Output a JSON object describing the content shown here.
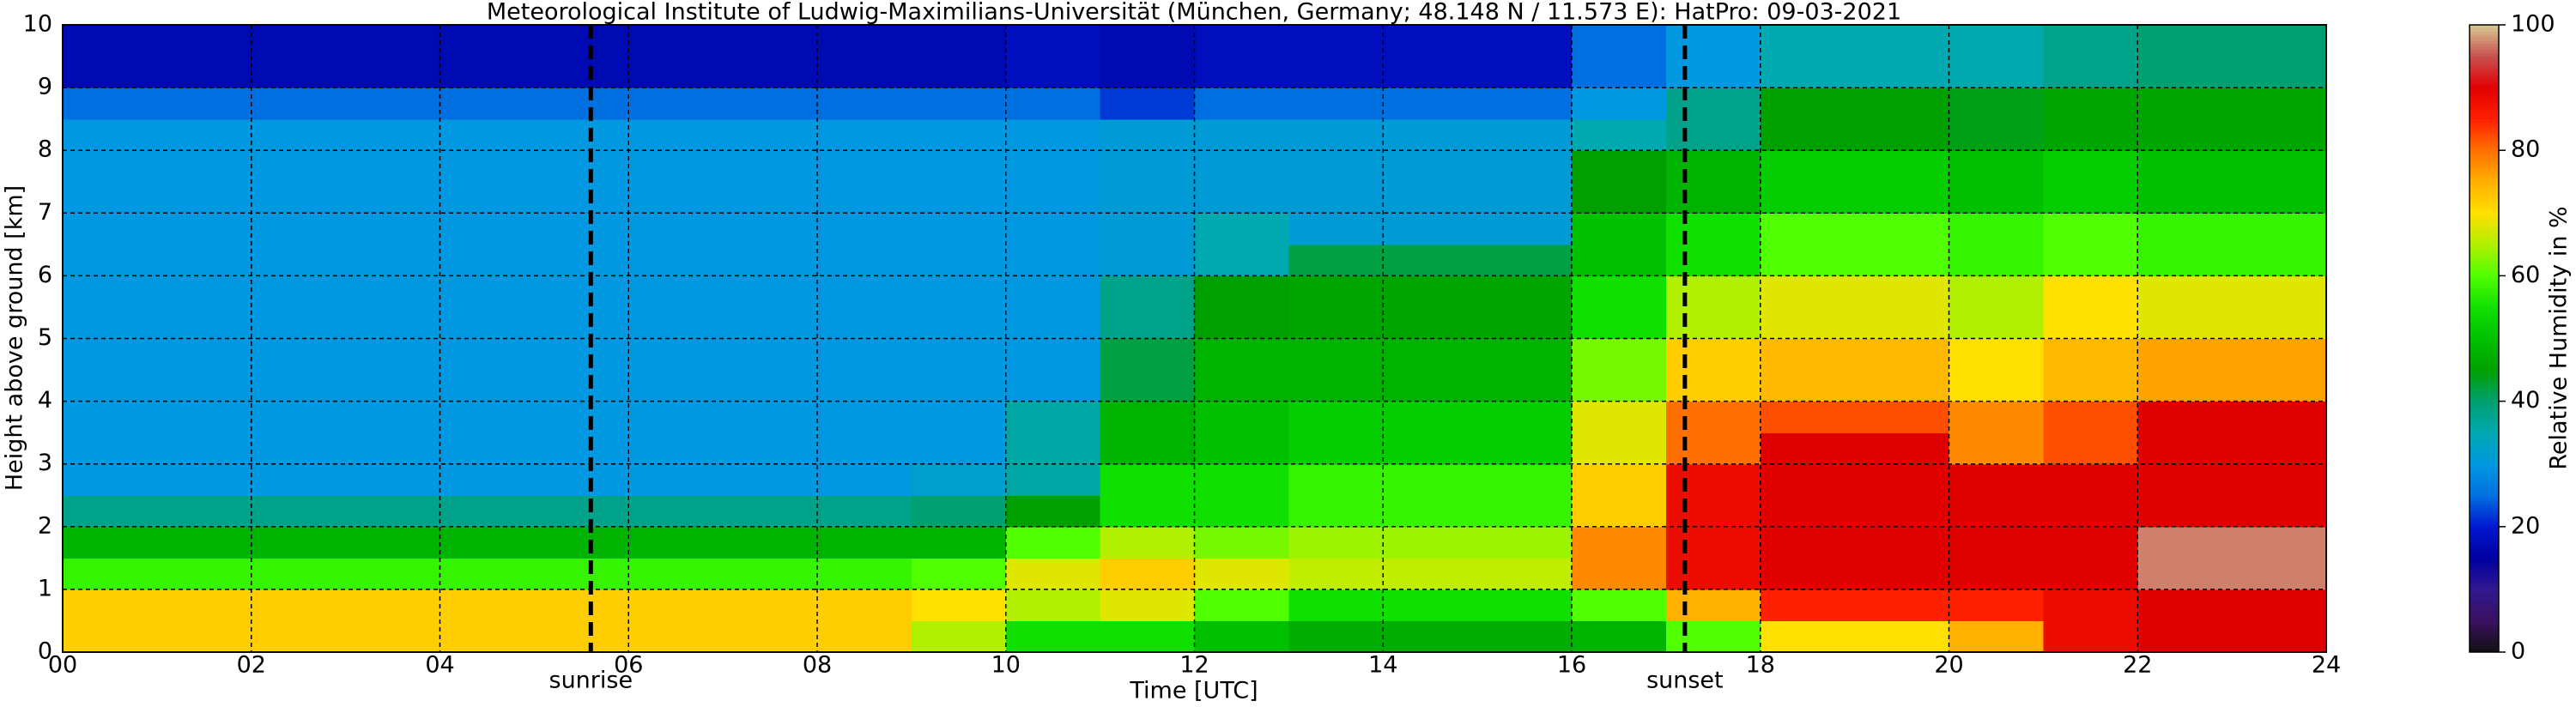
{
  "chart_data": {
    "type": "heatmap",
    "title": "Meteorological Institute of Ludwig-Maximilians-Universität (München, Germany; 48.148 N / 11.573 E):     HatPro: 09-03-2021",
    "x_label": "Time [UTC]",
    "y_label": "Height above ground [km]",
    "xlim": [
      0,
      24
    ],
    "ylim": [
      0,
      10
    ],
    "xticks": [
      {
        "value": 0,
        "label": "00"
      },
      {
        "value": 2,
        "label": "02"
      },
      {
        "value": 4,
        "label": "04"
      },
      {
        "value": 6,
        "label": "06"
      },
      {
        "value": 8,
        "label": "08"
      },
      {
        "value": 10,
        "label": "10"
      },
      {
        "value": 12,
        "label": "12"
      },
      {
        "value": 14,
        "label": "14"
      },
      {
        "value": 16,
        "label": "16"
      },
      {
        "value": 18,
        "label": "18"
      },
      {
        "value": 20,
        "label": "20"
      },
      {
        "value": 22,
        "label": "22"
      },
      {
        "value": 24,
        "label": "24"
      }
    ],
    "yticks": [
      0,
      1,
      2,
      3,
      4,
      5,
      6,
      7,
      8,
      9,
      10
    ],
    "grid": true,
    "x": [
      0,
      1,
      2,
      3,
      4,
      5,
      6,
      7,
      8,
      9,
      10,
      11,
      12,
      13,
      14,
      15,
      16,
      17,
      18,
      19,
      20,
      21,
      22,
      23
    ],
    "y": [
      0,
      0.5,
      1,
      1.5,
      2,
      2.5,
      3,
      3.5,
      4,
      4.5,
      5,
      5.5,
      6,
      6.5,
      7,
      7.5,
      8,
      8.5,
      9,
      9.5
    ],
    "z": [
      [
        72,
        72,
        58,
        48,
        38,
        30,
        30,
        30,
        30,
        30,
        30,
        30,
        30,
        30,
        30,
        30,
        30,
        25,
        17,
        17
      ],
      [
        72,
        72,
        58,
        48,
        38,
        30,
        30,
        30,
        30,
        30,
        30,
        30,
        30,
        30,
        30,
        30,
        30,
        25,
        17,
        17
      ],
      [
        72,
        72,
        58,
        48,
        38,
        30,
        30,
        30,
        30,
        30,
        30,
        30,
        30,
        30,
        30,
        30,
        30,
        25,
        17,
        17
      ],
      [
        72,
        72,
        58,
        48,
        38,
        30,
        30,
        30,
        30,
        30,
        30,
        30,
        30,
        30,
        30,
        30,
        30,
        25,
        17,
        17
      ],
      [
        72,
        72,
        58,
        48,
        38,
        30,
        30,
        30,
        30,
        30,
        30,
        30,
        30,
        30,
        30,
        30,
        30,
        25,
        17,
        17
      ],
      [
        72,
        72,
        58,
        48,
        38,
        30,
        30,
        30,
        30,
        30,
        30,
        30,
        30,
        30,
        30,
        30,
        30,
        25,
        17,
        17
      ],
      [
        72,
        72,
        58,
        48,
        38,
        30,
        30,
        30,
        30,
        30,
        30,
        30,
        30,
        30,
        30,
        30,
        30,
        25,
        17,
        17
      ],
      [
        72,
        72,
        58,
        48,
        38,
        30,
        30,
        30,
        30,
        30,
        30,
        30,
        30,
        30,
        30,
        30,
        30,
        25,
        17,
        17
      ],
      [
        72,
        72,
        58,
        48,
        38,
        30,
        30,
        30,
        30,
        30,
        30,
        30,
        30,
        30,
        30,
        30,
        30,
        25,
        17,
        17
      ],
      [
        65,
        70,
        60,
        48,
        40,
        32,
        30,
        30,
        30,
        30,
        30,
        30,
        30,
        30,
        30,
        30,
        30,
        25,
        17,
        17
      ],
      [
        55,
        65,
        68,
        60,
        45,
        36,
        36,
        36,
        30,
        30,
        30,
        30,
        30,
        30,
        30,
        30,
        30,
        25,
        18,
        18
      ],
      [
        55,
        68,
        72,
        65,
        55,
        55,
        48,
        48,
        42,
        42,
        38,
        38,
        31,
        31,
        31,
        31,
        31,
        22,
        17,
        17
      ],
      [
        50,
        60,
        68,
        62,
        55,
        55,
        50,
        50,
        48,
        48,
        45,
        45,
        35,
        35,
        31,
        31,
        31,
        25,
        18,
        18
      ],
      [
        47,
        55,
        66,
        64,
        58,
        58,
        52,
        52,
        48,
        48,
        46,
        46,
        42,
        31,
        31,
        31,
        31,
        25,
        18,
        18
      ],
      [
        47,
        55,
        66,
        64,
        58,
        58,
        52,
        52,
        48,
        48,
        46,
        46,
        42,
        31,
        31,
        31,
        31,
        25,
        18,
        18
      ],
      [
        47,
        55,
        66,
        64,
        58,
        58,
        52,
        52,
        48,
        48,
        46,
        46,
        42,
        31,
        31,
        31,
        31,
        25,
        18,
        18
      ],
      [
        48,
        60,
        78,
        78,
        72,
        72,
        68,
        68,
        62,
        62,
        55,
        55,
        50,
        50,
        45,
        45,
        35,
        30,
        25,
        25
      ],
      [
        60,
        75,
        88,
        88,
        88,
        88,
        80,
        80,
        72,
        72,
        65,
        65,
        55,
        55,
        48,
        48,
        38,
        38,
        30,
        30
      ],
      [
        70,
        85,
        90,
        90,
        90,
        90,
        90,
        82,
        74,
        74,
        68,
        68,
        60,
        60,
        52,
        52,
        45,
        45,
        35,
        35
      ],
      [
        70,
        85,
        90,
        90,
        90,
        90,
        90,
        82,
        74,
        74,
        68,
        68,
        60,
        60,
        52,
        52,
        45,
        45,
        35,
        35
      ],
      [
        75,
        85,
        90,
        90,
        90,
        90,
        78,
        78,
        70,
        70,
        65,
        65,
        58,
        58,
        50,
        50,
        44,
        44,
        35,
        35
      ],
      [
        88,
        88,
        90,
        90,
        90,
        90,
        82,
        82,
        74,
        74,
        70,
        70,
        60,
        60,
        52,
        52,
        46,
        46,
        38,
        38
      ],
      [
        90,
        90,
        97,
        97,
        90,
        90,
        90,
        90,
        76,
        76,
        68,
        68,
        58,
        58,
        50,
        50,
        46,
        46,
        40,
        40
      ],
      [
        90,
        90,
        97,
        97,
        90,
        90,
        90,
        90,
        76,
        76,
        68,
        68,
        58,
        58,
        50,
        50,
        46,
        46,
        40,
        40
      ]
    ],
    "colorscale": [
      "#101010",
      "#3a1060",
      "#301890",
      "#0000a0",
      "#0018d0",
      "#0070e0",
      "#0098e0",
      "#00a8b0",
      "#00a070",
      "#00a000",
      "#00c000",
      "#10e000",
      "#50ff00",
      "#b0f000",
      "#ffe000",
      "#ffb000",
      "#ff7000",
      "#ff2000",
      "#e00000",
      "#c85050",
      "#d8c890"
    ],
    "colorbar": {
      "label": "Relative Humidity in %",
      "lim": [
        0,
        100
      ],
      "ticks": [
        0,
        20,
        40,
        60,
        80,
        100
      ]
    },
    "annotations": [
      {
        "text": "sunrise",
        "x": 5.6
      },
      {
        "text": "sunset",
        "x": 17.2
      }
    ]
  }
}
